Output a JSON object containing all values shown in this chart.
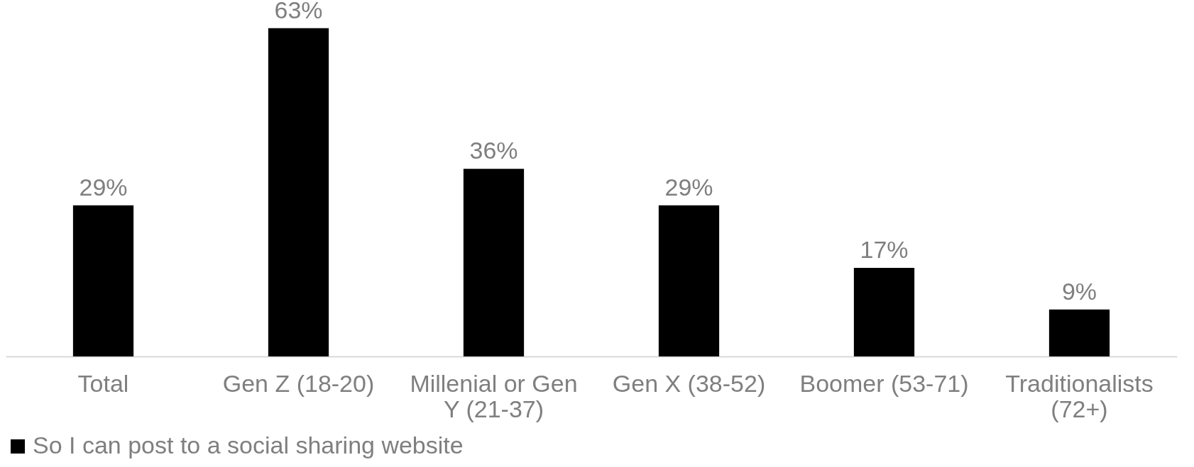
{
  "chart_data": {
    "type": "bar",
    "categories": [
      "Total",
      "Gen Z (18-20)",
      "Millenial or Gen Y (21-37)",
      "Gen X (38-52)",
      "Boomer (53-71)",
      "Traditionalists (72+)"
    ],
    "series": [
      {
        "name": "So I can post to a social sharing website",
        "color": "#000000",
        "values": [
          29,
          63,
          36,
          29,
          17,
          9
        ],
        "value_labels": [
          "29%",
          "63%",
          "36%",
          "29%",
          "17%",
          "9%"
        ]
      }
    ],
    "legend": "bottom"
  }
}
